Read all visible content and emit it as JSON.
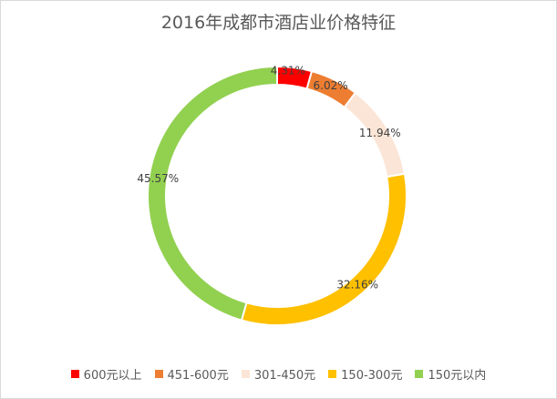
{
  "chart_data": {
    "type": "pie",
    "title": "2016年成都市酒店业价格特征",
    "categories": [
      "600元以上",
      "451-600元",
      "301-450元",
      "150-300元",
      "150元以内"
    ],
    "values": [
      4.31,
      6.02,
      11.94,
      32.16,
      45.57
    ],
    "labels": [
      "4.31%",
      "6.02%",
      "11.94%",
      "32.16%",
      "45.57%"
    ],
    "colors": [
      "#ff0000",
      "#ed7d31",
      "#fbe5d6",
      "#ffc000",
      "#92d050"
    ],
    "legend_position": "bottom",
    "style": "doughnut"
  }
}
